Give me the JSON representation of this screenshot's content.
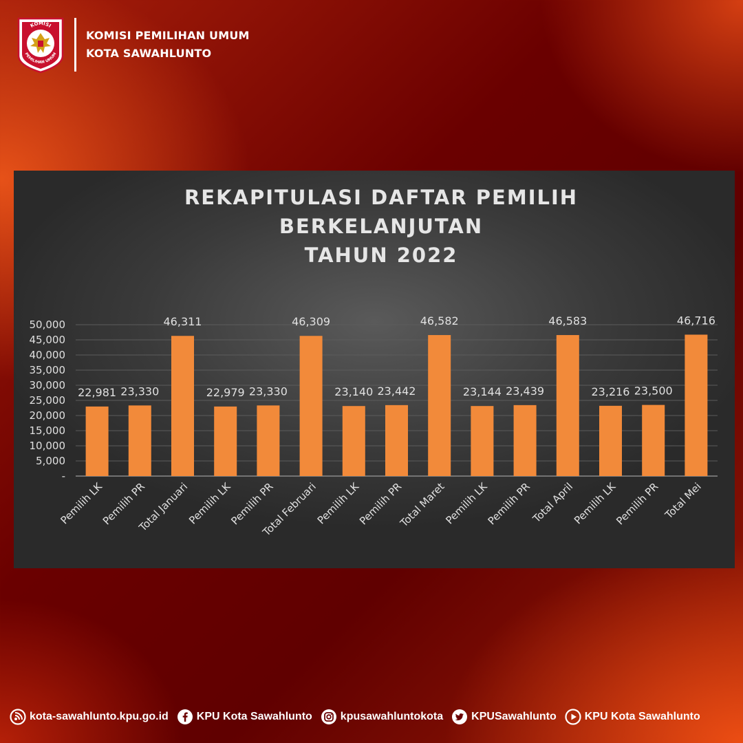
{
  "header": {
    "org_line1": "KOMISI PEMILIHAN UMUM",
    "org_line2": "KOTA SAWAHLUNTO",
    "logo_top_text": "KOMISI",
    "logo_bottom_text": "PEMILIHAN UMUM"
  },
  "colors": {
    "bar": "#f28a3a",
    "panel": "#3a3a3a",
    "gridline": "#5c5c5c",
    "text": "#e0e0e0"
  },
  "chart_data": {
    "type": "bar",
    "title_lines": [
      "REKAPITULASI DAFTAR PEMILIH",
      "BERKELANJUTAN",
      "TAHUN 2022"
    ],
    "categories": [
      "Pemilih LK",
      "Pemilih PR",
      "Total Januari",
      "Pemilih LK",
      "Pemilih PR",
      "Total Februari",
      "Pemilih LK",
      "Pemilih PR",
      "Total Maret",
      "Pemilih LK",
      "Pemilih PR",
      "Total April",
      "Pemilih LK",
      "Pemilih PR",
      "Total Mei"
    ],
    "values": [
      22981,
      23330,
      46311,
      22979,
      23330,
      46309,
      23140,
      23442,
      46582,
      23144,
      23439,
      46583,
      23216,
      23500,
      46716
    ],
    "value_labels": [
      "22,981",
      "23,330",
      "46,311",
      "22,979",
      "23,330",
      "46,309",
      "23,140",
      "23,442",
      "46,582",
      "23,144",
      "23,439",
      "46,583",
      "23,216",
      "23,500",
      "46,716"
    ],
    "y_ticks": [
      "-",
      "5,000",
      "10,000",
      "15,000",
      "20,000",
      "25,000",
      "30,000",
      "35,000",
      "40,000",
      "45,000",
      "50,000"
    ],
    "ylim": [
      0,
      50000
    ],
    "grid": true,
    "legend": "none"
  },
  "footer": {
    "items": [
      {
        "icon": "website-icon",
        "text": "kota-sawahlunto.kpu.go.id"
      },
      {
        "icon": "facebook-icon",
        "text": "KPU Kota Sawahlunto"
      },
      {
        "icon": "instagram-icon",
        "text": "kpusawahluntokota"
      },
      {
        "icon": "twitter-icon",
        "text": "KPUSawahlunto"
      },
      {
        "icon": "youtube-icon",
        "text": "KPU Kota Sawahlunto"
      }
    ]
  }
}
